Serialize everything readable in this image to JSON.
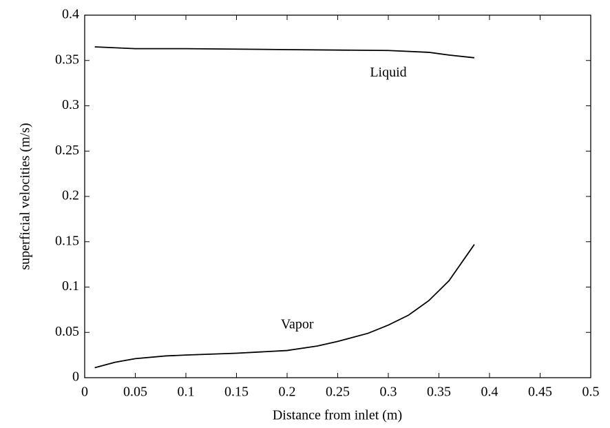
{
  "chart_data": {
    "type": "line",
    "xlabel": "Distance from inlet (m)",
    "ylabel": "superficial velocities (m/s)",
    "xlim": [
      0,
      0.5
    ],
    "xticks": [
      0,
      0.05,
      0.1,
      0.15,
      0.2,
      0.25,
      0.3,
      0.35,
      0.4,
      0.45,
      0.5
    ],
    "ylim": [
      0,
      0.4
    ],
    "yticks": [
      0,
      0.05,
      0.1,
      0.15,
      0.2,
      0.25,
      0.3,
      0.35,
      0.4
    ],
    "grid": false,
    "series": [
      {
        "name": "Liquid",
        "color": "#000000",
        "x": [
          0.01,
          0.05,
          0.1,
          0.2,
          0.3,
          0.34,
          0.36,
          0.385
        ],
        "values": [
          0.365,
          0.363,
          0.363,
          0.362,
          0.361,
          0.359,
          0.356,
          0.353
        ]
      },
      {
        "name": "Vapor",
        "color": "#000000",
        "x": [
          0.01,
          0.03,
          0.05,
          0.08,
          0.1,
          0.15,
          0.2,
          0.23,
          0.25,
          0.28,
          0.3,
          0.32,
          0.34,
          0.36,
          0.385
        ],
        "values": [
          0.011,
          0.017,
          0.021,
          0.024,
          0.025,
          0.027,
          0.03,
          0.035,
          0.04,
          0.049,
          0.058,
          0.069,
          0.085,
          0.107,
          0.147
        ]
      }
    ]
  }
}
